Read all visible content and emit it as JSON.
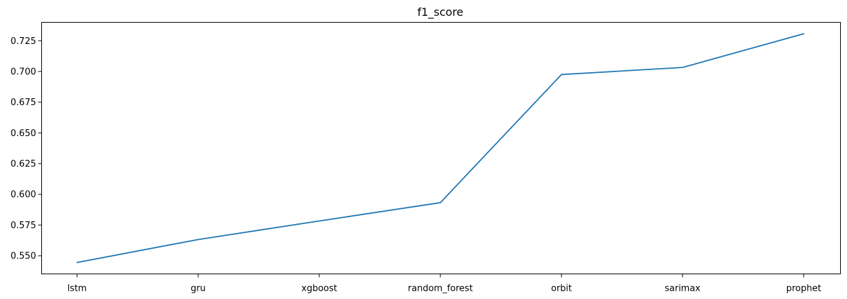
{
  "chart_data": {
    "type": "line",
    "title": "f1_score",
    "xlabel": "",
    "ylabel": "",
    "categories": [
      "lstm",
      "gru",
      "xgboost",
      "random_forest",
      "orbit",
      "sarimax",
      "prophet"
    ],
    "series": [
      {
        "values": [
          0.5445,
          0.5632,
          0.5783,
          0.5932,
          0.6975,
          0.7033,
          0.7307
        ]
      }
    ],
    "yticks": [
      0.55,
      0.575,
      0.6,
      0.625,
      0.65,
      0.675,
      0.7,
      0.725
    ],
    "ytick_labels": [
      "0.550",
      "0.575",
      "0.600",
      "0.625",
      "0.650",
      "0.675",
      "0.700",
      "0.725"
    ],
    "ylim": [
      0.5352,
      0.74
    ],
    "grid": false,
    "line_color": "#1f77b4"
  }
}
